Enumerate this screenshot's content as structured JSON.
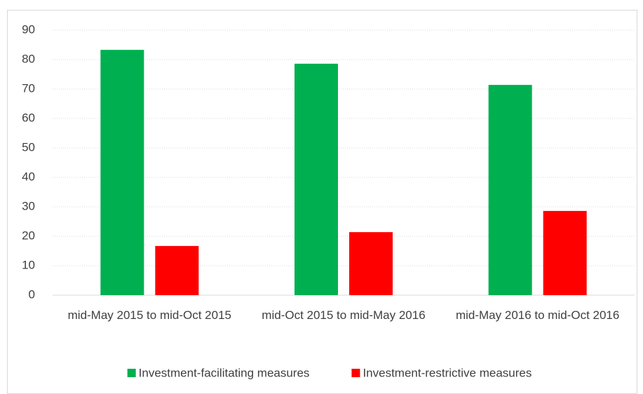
{
  "chart_data": {
    "type": "bar",
    "categories": [
      "mid-May 2015 to mid-Oct 2015",
      "mid-Oct 2015 to mid-May 2016",
      "mid-May 2016 to mid-Oct 2016"
    ],
    "series": [
      {
        "name": "Investment-facilitating measures",
        "color": "#00b050",
        "values": [
          83.3,
          78.6,
          71.4
        ]
      },
      {
        "name": "Investment-restrictive measures",
        "color": "#ff0000",
        "values": [
          16.7,
          21.4,
          28.6
        ]
      }
    ],
    "ylim": [
      0,
      90
    ],
    "yticks": [
      0,
      10,
      20,
      30,
      40,
      50,
      60,
      70,
      80,
      90
    ],
    "grid": true,
    "legend": "bottom"
  }
}
